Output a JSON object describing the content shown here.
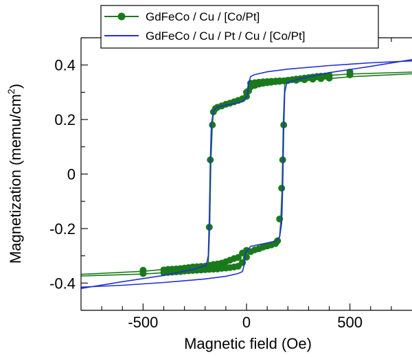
{
  "chart_data": {
    "type": "line",
    "xlabel": "Magnetic field (Oe)",
    "ylabel_main": "Magnetization (memu/cm",
    "ylabel_sup": "2",
    "ylabel_close": ")",
    "xlim": [
      -800,
      800
    ],
    "ylim": [
      -0.5,
      0.5
    ],
    "x_ticks": [
      -500,
      0,
      500
    ],
    "x_tick_labels": [
      "-500",
      "0",
      "500"
    ],
    "y_ticks": [
      0.4,
      0.2,
      0,
      -0.2,
      -0.4
    ],
    "y_tick_labels": [
      "0.4",
      "0.2",
      "0",
      "-0.2",
      "-0.4"
    ],
    "grid": false,
    "legend_placement": "top",
    "series": [
      {
        "name": "GdFeCo / Cu / [Co/Pt]",
        "color": "#1a7a1a",
        "marker": "circle",
        "descending": [
          [
            800,
            0.374
          ],
          [
            500,
            0.367
          ],
          [
            400,
            0.362
          ],
          [
            300,
            0.356
          ],
          [
            200,
            0.351
          ],
          [
            100,
            0.345
          ],
          [
            40,
            0.338
          ],
          [
            20,
            0.32
          ],
          [
            10,
            0.3
          ],
          [
            0,
            0.29
          ],
          [
            -30,
            0.276
          ],
          [
            -80,
            0.265
          ],
          [
            -130,
            0.255
          ],
          [
            -150,
            0.245
          ],
          [
            -160,
            0.228
          ],
          [
            -165,
            0.18
          ],
          [
            -172,
            0.052
          ],
          [
            -178,
            -0.195
          ],
          [
            -185,
            -0.33
          ],
          [
            -200,
            -0.338
          ],
          [
            -300,
            -0.344
          ],
          [
            -400,
            -0.35
          ],
          [
            -500,
            -0.357
          ],
          [
            -800,
            -0.368
          ]
        ],
        "ascending": [
          [
            -800,
            -0.374
          ],
          [
            -500,
            -0.367
          ],
          [
            -400,
            -0.362
          ],
          [
            -300,
            -0.356
          ],
          [
            -200,
            -0.351
          ],
          [
            -100,
            -0.345
          ],
          [
            -40,
            -0.338
          ],
          [
            -20,
            -0.32
          ],
          [
            -10,
            -0.3
          ],
          [
            0,
            -0.29
          ],
          [
            30,
            -0.276
          ],
          [
            80,
            -0.265
          ],
          [
            130,
            -0.255
          ],
          [
            150,
            -0.245
          ],
          [
            160,
            -0.228
          ],
          [
            165,
            -0.18
          ],
          [
            172,
            -0.052
          ],
          [
            178,
            0.195
          ],
          [
            185,
            0.33
          ],
          [
            200,
            0.338
          ],
          [
            300,
            0.344
          ],
          [
            400,
            0.35
          ],
          [
            500,
            0.357
          ],
          [
            800,
            0.368
          ]
        ],
        "points": [
          [
            -500,
            -0.353
          ],
          [
            -500,
            -0.365
          ],
          [
            -400,
            -0.352
          ],
          [
            -380,
            -0.35
          ],
          [
            -360,
            -0.349
          ],
          [
            -340,
            -0.348
          ],
          [
            -320,
            -0.347
          ],
          [
            -300,
            -0.345
          ],
          [
            -280,
            -0.343
          ],
          [
            -260,
            -0.341
          ],
          [
            -240,
            -0.34
          ],
          [
            -220,
            -0.339
          ],
          [
            -200,
            -0.338
          ],
          [
            -180,
            -0.335
          ],
          [
            -160,
            -0.332
          ],
          [
            -140,
            -0.33
          ],
          [
            -120,
            -0.327
          ],
          [
            -100,
            -0.322
          ],
          [
            -80,
            -0.316
          ],
          [
            -60,
            -0.31
          ],
          [
            -40,
            -0.306
          ],
          [
            -20,
            -0.29
          ],
          [
            0,
            -0.28
          ],
          [
            -400,
            -0.362
          ],
          [
            -380,
            -0.361
          ],
          [
            -360,
            -0.36
          ],
          [
            -340,
            -0.359
          ],
          [
            -320,
            -0.358
          ],
          [
            -300,
            -0.356
          ],
          [
            -280,
            -0.355
          ],
          [
            -260,
            -0.354
          ],
          [
            -240,
            -0.353
          ],
          [
            -220,
            -0.352
          ],
          [
            -200,
            -0.351
          ],
          [
            -180,
            -0.35
          ],
          [
            -160,
            -0.349
          ],
          [
            -140,
            -0.348
          ],
          [
            -120,
            -0.346
          ],
          [
            -100,
            -0.345
          ],
          [
            -80,
            -0.343
          ],
          [
            -60,
            -0.341
          ],
          [
            -40,
            -0.338
          ],
          [
            -20,
            -0.325
          ],
          [
            0,
            -0.305
          ],
          [
            20,
            -0.285
          ],
          [
            40,
            -0.278
          ],
          [
            60,
            -0.274
          ],
          [
            80,
            -0.268
          ],
          [
            100,
            -0.264
          ],
          [
            120,
            -0.26
          ],
          [
            140,
            -0.255
          ],
          [
            150,
            -0.245
          ],
          [
            160,
            -0.165
          ],
          [
            170,
            -0.052
          ],
          [
            175,
            0.052
          ],
          [
            180,
            0.18
          ],
          [
            -180,
            -0.195
          ],
          [
            -175,
            0.052
          ],
          [
            -165,
            0.18
          ],
          [
            -160,
            0.228
          ],
          [
            -150,
            0.24
          ],
          [
            -140,
            0.245
          ],
          [
            -120,
            0.25
          ],
          [
            -100,
            0.256
          ],
          [
            -80,
            0.26
          ],
          [
            -60,
            0.265
          ],
          [
            -40,
            0.27
          ],
          [
            -20,
            0.276
          ],
          [
            0,
            0.285
          ],
          [
            10,
            0.305
          ],
          [
            20,
            0.32
          ],
          [
            40,
            0.325
          ],
          [
            60,
            0.33
          ],
          [
            80,
            0.333
          ],
          [
            100,
            0.335
          ],
          [
            120,
            0.337
          ],
          [
            140,
            0.339
          ],
          [
            160,
            0.34
          ],
          [
            180,
            0.342
          ],
          [
            200,
            0.344
          ],
          [
            220,
            0.346
          ],
          [
            240,
            0.348
          ],
          [
            260,
            0.35
          ],
          [
            280,
            0.352
          ],
          [
            300,
            0.354
          ],
          [
            320,
            0.356
          ],
          [
            340,
            0.358
          ],
          [
            360,
            0.359
          ],
          [
            380,
            0.36
          ],
          [
            400,
            0.362
          ],
          [
            500,
            0.364
          ],
          [
            500,
            0.374
          ],
          [
            0,
            0.3
          ],
          [
            20,
            0.333
          ],
          [
            40,
            0.335
          ],
          [
            60,
            0.337
          ],
          [
            80,
            0.338
          ],
          [
            100,
            0.339
          ],
          [
            120,
            0.34
          ],
          [
            140,
            0.341
          ],
          [
            160,
            0.342
          ],
          [
            200,
            0.343
          ],
          [
            240,
            0.344
          ],
          [
            280,
            0.346
          ],
          [
            320,
            0.348
          ],
          [
            360,
            0.35
          ],
          [
            400,
            0.352
          ]
        ]
      },
      {
        "name": "GdFeCo / Cu / Pt / Cu / [Co/Pt]",
        "color": "#1f2fd6",
        "marker": "none",
        "descending": [
          [
            800,
            0.415
          ],
          [
            600,
            0.408
          ],
          [
            400,
            0.398
          ],
          [
            200,
            0.385
          ],
          [
            100,
            0.375
          ],
          [
            40,
            0.365
          ],
          [
            20,
            0.358
          ],
          [
            10,
            0.33
          ],
          [
            5,
            0.29
          ],
          [
            -20,
            0.265
          ],
          [
            -80,
            0.256
          ],
          [
            -140,
            0.246
          ],
          [
            -160,
            0.232
          ],
          [
            -170,
            0.18
          ],
          [
            -175,
            0.05
          ],
          [
            -180,
            -0.16
          ],
          [
            -185,
            -0.3
          ],
          [
            -195,
            -0.335
          ],
          [
            -250,
            -0.348
          ],
          [
            -400,
            -0.372
          ],
          [
            -600,
            -0.395
          ],
          [
            -800,
            -0.42
          ]
        ],
        "ascending": [
          [
            -800,
            -0.415
          ],
          [
            -600,
            -0.408
          ],
          [
            -400,
            -0.398
          ],
          [
            -200,
            -0.385
          ],
          [
            -100,
            -0.375
          ],
          [
            -40,
            -0.365
          ],
          [
            -20,
            -0.358
          ],
          [
            -10,
            -0.33
          ],
          [
            -5,
            -0.29
          ],
          [
            20,
            -0.265
          ],
          [
            80,
            -0.256
          ],
          [
            140,
            -0.246
          ],
          [
            160,
            -0.232
          ],
          [
            170,
            -0.18
          ],
          [
            175,
            -0.05
          ],
          [
            180,
            0.16
          ],
          [
            185,
            0.3
          ],
          [
            195,
            0.335
          ],
          [
            250,
            0.348
          ],
          [
            400,
            0.372
          ],
          [
            600,
            0.395
          ],
          [
            800,
            0.42
          ]
        ]
      }
    ]
  }
}
